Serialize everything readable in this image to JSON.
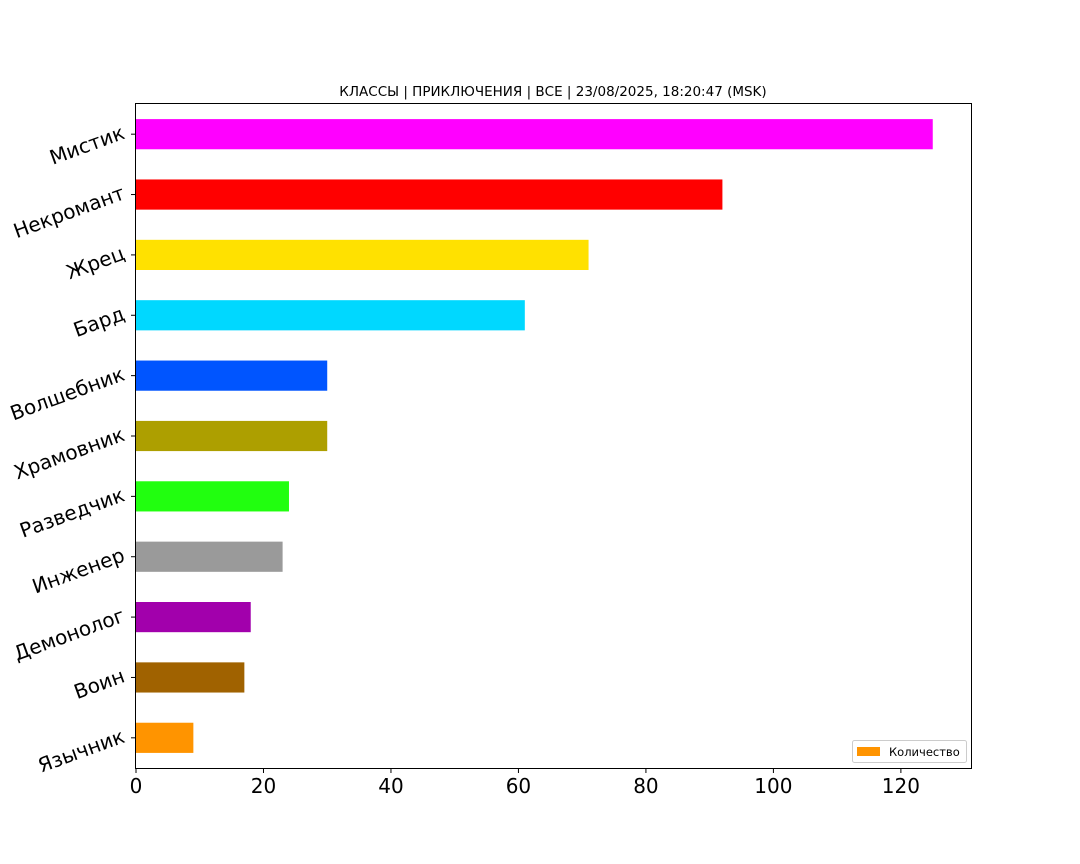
{
  "chart_data": {
    "type": "bar",
    "orientation": "horizontal",
    "title": "КЛАССЫ | ПРИКЛЮЧЕНИЯ | ВСЕ | 23/08/2025, 18:20:47 (MSK)",
    "xlabel": "",
    "ylabel": "",
    "categories": [
      "Мистик",
      "Некромант",
      "Жрец",
      "Бард",
      "Волшебник",
      "Храмовник",
      "Разведчик",
      "Инженер",
      "Демонолог",
      "Воин",
      "Язычник"
    ],
    "values": [
      125,
      92,
      71,
      61,
      30,
      30,
      24,
      23,
      18,
      17,
      9
    ],
    "colors": [
      "#ff00ff",
      "#ff0000",
      "#ffe100",
      "#00d8ff",
      "#0055ff",
      "#ad9f00",
      "#21ff0f",
      "#9a9a9a",
      "#a200ac",
      "#a06200",
      "#ff9400"
    ],
    "xlim": [
      0,
      131
    ],
    "xticks": [
      0,
      20,
      40,
      60,
      80,
      100,
      120
    ],
    "grid": false,
    "legend": {
      "entries": [
        {
          "label": "Количество",
          "color": "#ff9400"
        }
      ],
      "placement": "lower-right"
    }
  }
}
